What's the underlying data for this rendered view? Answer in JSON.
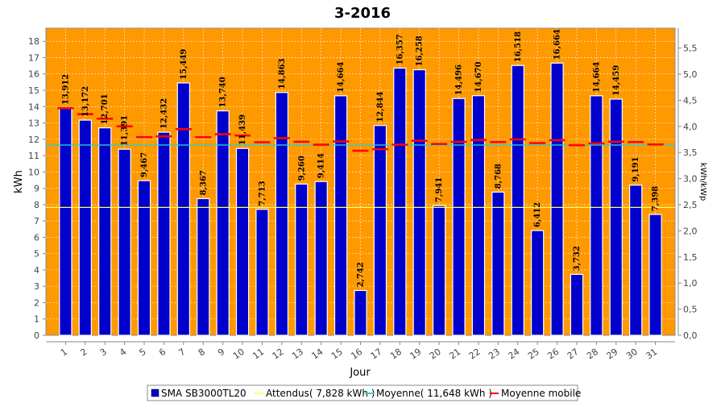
{
  "chart_data": {
    "type": "bar",
    "title": "3-2016",
    "xlabel": "Jour",
    "ylabel": "kWh",
    "y2label": "kWh/kWp",
    "ylim": [
      0,
      18.8
    ],
    "y2lim": [
      0,
      5.88
    ],
    "yticks": [
      0,
      1,
      2,
      3,
      4,
      5,
      6,
      7,
      8,
      9,
      10,
      11,
      12,
      13,
      14,
      15,
      16,
      17,
      18
    ],
    "y2ticks": [
      "0,0",
      "0,5",
      "1,0",
      "1,5",
      "2,0",
      "2,5",
      "3,0",
      "3,5",
      "4,0",
      "4,5",
      "5,0",
      "5,5"
    ],
    "grid": true,
    "legend_position": "bottom",
    "colors": {
      "plot_background": "#FF9900",
      "bar": "#0000CC",
      "attendus": "#FFFF66",
      "moyenne": "#33CCCC",
      "moyenne_mobile": "#FF0000"
    },
    "categories": [
      "1",
      "2",
      "3",
      "4",
      "5",
      "6",
      "7",
      "8",
      "9",
      "10",
      "11",
      "12",
      "13",
      "14",
      "15",
      "16",
      "17",
      "18",
      "19",
      "20",
      "21",
      "22",
      "23",
      "24",
      "25",
      "26",
      "27",
      "28",
      "29",
      "30",
      "31"
    ],
    "series": [
      {
        "name": "SMA SB3000TL20",
        "values": [
          13.912,
          13.172,
          12.701,
          11.391,
          9.467,
          12.432,
          15.449,
          8.367,
          13.74,
          11.439,
          7.713,
          14.863,
          9.26,
          9.414,
          14.664,
          2.742,
          12.844,
          16.357,
          16.258,
          7.941,
          14.496,
          14.67,
          8.768,
          16.518,
          6.412,
          16.664,
          3.732,
          14.664,
          14.459,
          9.191,
          7.398
        ],
        "labels": [
          "13,912",
          "13,172",
          "12,701",
          "11,391",
          "9,467",
          "12,432",
          "15,449",
          "8,367",
          "13,740",
          "11,439",
          "7,713",
          "14,863",
          "9,260",
          "9,414",
          "14,664",
          "2,742",
          "12,844",
          "16,357",
          "16,258",
          "7,941",
          "14,496",
          "14,670",
          "8,768",
          "16,518",
          "6,412",
          "16,664",
          "3,732",
          "14,664",
          "14,459",
          "9,191",
          "7,398"
        ]
      },
      {
        "name": "Attendus( 7,828 kWh )",
        "value": 7.828
      },
      {
        "name": "Moyenne( 11,648 kWh )",
        "value": 11.648
      },
      {
        "name": "Moyenne mobile",
        "values": [
          13.9,
          13.54,
          13.26,
          12.79,
          12.13,
          12.18,
          12.62,
          12.13,
          12.31,
          12.23,
          11.82,
          12.07,
          11.85,
          11.67,
          11.87,
          11.3,
          11.39,
          11.67,
          11.91,
          11.71,
          11.84,
          11.96,
          11.83,
          11.99,
          11.77,
          11.95,
          11.64,
          11.75,
          11.85,
          11.83,
          11.68
        ]
      }
    ]
  }
}
